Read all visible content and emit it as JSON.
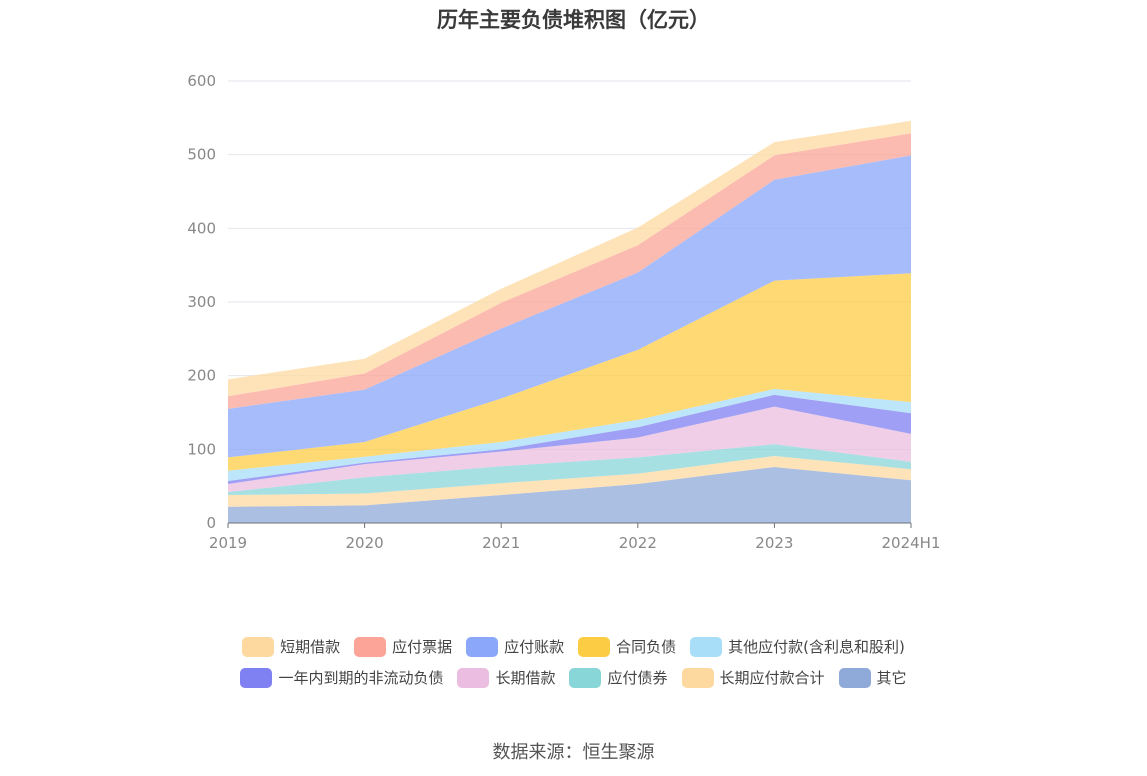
{
  "chart_data": {
    "type": "area",
    "title": "历年主要负债堆积图（亿元）",
    "categories": [
      "2019",
      "2020",
      "2021",
      "2022",
      "2023",
      "2024H1"
    ],
    "ylim": [
      0,
      600
    ],
    "yticks": [
      "0",
      "100",
      "200",
      "300",
      "400",
      "500",
      "600"
    ],
    "grid": true,
    "legend_position": "bottom",
    "series": [
      {
        "name": "其它",
        "color": "#8fa9d9",
        "values": [
          22,
          24,
          38,
          53,
          76,
          58
        ]
      },
      {
        "name": "长期应付款合计",
        "color": "#fdd9a0",
        "values": [
          16,
          16,
          16,
          14,
          15,
          15
        ]
      },
      {
        "name": "应付债券",
        "color": "#88d6d8",
        "values": [
          4,
          22,
          23,
          22,
          16,
          10
        ]
      },
      {
        "name": "长期借款",
        "color": "#ebbde0",
        "values": [
          11,
          18,
          20,
          27,
          51,
          38
        ]
      },
      {
        "name": "一年内到期的非流动负债",
        "color": "#7f80f2",
        "values": [
          4,
          2,
          3,
          14,
          16,
          28
        ]
      },
      {
        "name": "其他应付款(含利息和股利)",
        "color": "#a8def8",
        "values": [
          14,
          8,
          10,
          10,
          8,
          15
        ]
      },
      {
        "name": "合同负债",
        "color": "#fdcc45",
        "values": [
          18,
          20,
          59,
          95,
          147,
          175
        ]
      },
      {
        "name": "应付账款",
        "color": "#8aa7f9",
        "values": [
          66,
          71,
          95,
          105,
          137,
          160
        ]
      },
      {
        "name": "应付票据",
        "color": "#fba497",
        "values": [
          17,
          22,
          35,
          37,
          33,
          30
        ]
      },
      {
        "name": "短期借款",
        "color": "#fdd9a0",
        "values": [
          23,
          20,
          19,
          24,
          18,
          17
        ]
      }
    ],
    "legend": [
      [
        "短期借款",
        "应付票据",
        "应付账款",
        "合同负债",
        "其他应付款(含利息和股利)"
      ],
      [
        "一年内到期的非流动负债",
        "长期借款",
        "应付债券",
        "长期应付款合计",
        "其它"
      ]
    ]
  },
  "source_text": "数据来源：恒生聚源"
}
